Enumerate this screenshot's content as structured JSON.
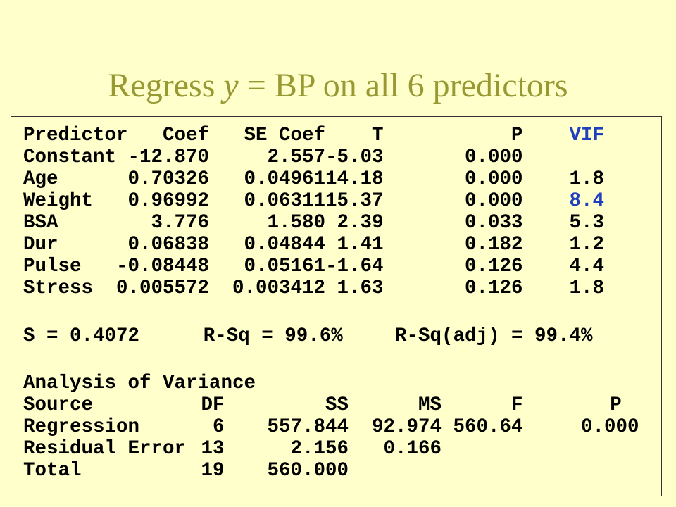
{
  "title": {
    "before": "Regress ",
    "italic": "y",
    "after": " = BP on all 6 predictors"
  },
  "coefficients": {
    "header": [
      "Predictor",
      "Coef",
      "SE Coef",
      "T",
      "P",
      "VIF"
    ],
    "rows": [
      [
        "Constant",
        "-12.870",
        "2.557",
        "-5.03",
        "0.000"
      ],
      [
        "Age",
        "0.70326",
        "0.04961",
        "14.18",
        "0.000",
        "1.8"
      ],
      [
        "Weight",
        "0.96992",
        "0.06311",
        "15.37",
        "0.000",
        "8.4"
      ],
      [
        "BSA",
        "3.776",
        "1.580",
        "2.39",
        "0.033",
        "5.3"
      ],
      [
        "Dur",
        "0.06838",
        "0.04844",
        "1.41",
        "0.182",
        "1.2"
      ],
      [
        "Pulse",
        "-0.08448",
        "0.05161",
        "-1.64",
        "0.126",
        "4.4"
      ],
      [
        "Stress",
        "0.005572",
        "0.003412",
        "1.63",
        "0.126",
        "1.8"
      ]
    ]
  },
  "summary": [
    "S = 0.4072",
    "R-Sq = 99.6%",
    "R-Sq(adj) = 99.4%"
  ],
  "anova": {
    "title": "Analysis of Variance",
    "header": [
      "Source",
      "DF",
      "SS",
      "MS",
      "F",
      "P"
    ],
    "rows": [
      [
        "Regression",
        "6",
        "557.844",
        "92.974",
        "560.64",
        "0.000"
      ],
      [
        "Residual Error",
        "13",
        "2.156",
        "0.166"
      ],
      [
        "Total",
        "19",
        "560.000"
      ]
    ]
  }
}
